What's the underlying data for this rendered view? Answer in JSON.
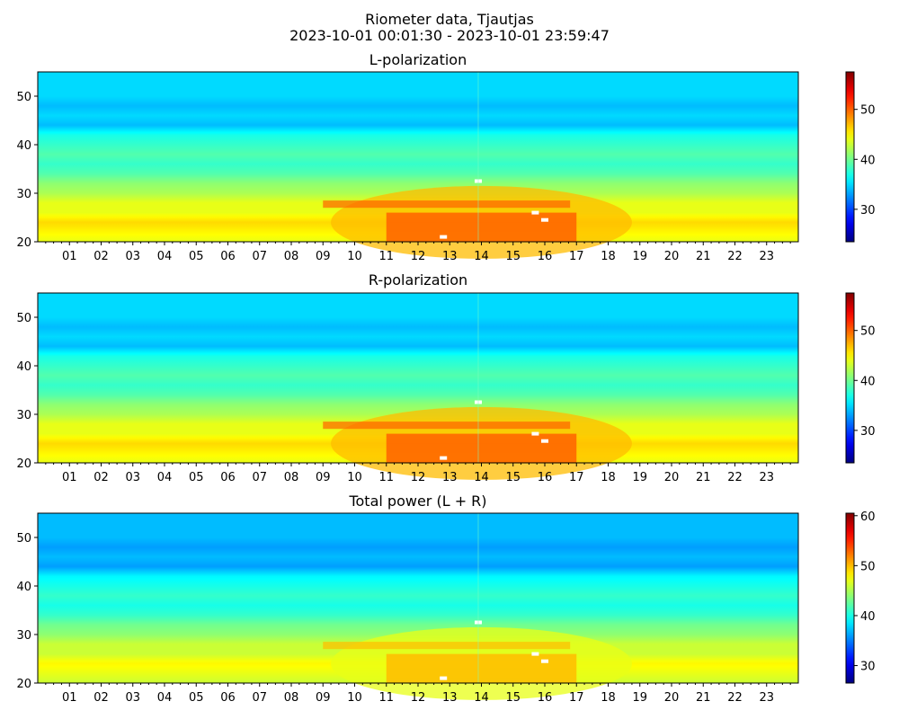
{
  "figure": {
    "title_line1": "Riometer data, Tjautjas",
    "title_line2": "2023-10-01 00:01:30 - 2023-10-01 23:59:47"
  },
  "colormap": "jet",
  "colors": {
    "white_saturation": "#ffffff",
    "axis": "#000000"
  },
  "chart_data": [
    {
      "type": "heatmap",
      "title": "L-polarization",
      "xlabel": "",
      "ylabel": "",
      "x_ticks": [
        "01",
        "02",
        "03",
        "04",
        "05",
        "06",
        "07",
        "08",
        "09",
        "10",
        "11",
        "12",
        "13",
        "14",
        "15",
        "16",
        "17",
        "18",
        "19",
        "20",
        "21",
        "22",
        "23"
      ],
      "x_range_hours": [
        0,
        24
      ],
      "y_range": [
        20,
        55
      ],
      "y_ticks": [
        "20",
        "30",
        "40",
        "50"
      ],
      "colorbar": {
        "range": [
          23.5,
          57.5
        ],
        "ticks": [
          "30",
          "40",
          "50"
        ]
      },
      "profile_by_y": [
        [
          20,
          44
        ],
        [
          22,
          45
        ],
        [
          24,
          46
        ],
        [
          26,
          44
        ],
        [
          28,
          44
        ],
        [
          30,
          42
        ],
        [
          32,
          41
        ],
        [
          34,
          39
        ],
        [
          36,
          38
        ],
        [
          38,
          39
        ],
        [
          40,
          38
        ],
        [
          42,
          37
        ],
        [
          44,
          34
        ],
        [
          46,
          35
        ],
        [
          48,
          34
        ],
        [
          50,
          35
        ],
        [
          52,
          35
        ],
        [
          55,
          35
        ]
      ]
    },
    {
      "type": "heatmap",
      "title": "R-polarization",
      "xlabel": "",
      "ylabel": "",
      "x_ticks": [
        "01",
        "02",
        "03",
        "04",
        "05",
        "06",
        "07",
        "08",
        "09",
        "10",
        "11",
        "12",
        "13",
        "14",
        "15",
        "16",
        "17",
        "18",
        "19",
        "20",
        "21",
        "22",
        "23"
      ],
      "x_range_hours": [
        0,
        24
      ],
      "y_range": [
        20,
        55
      ],
      "y_ticks": [
        "20",
        "30",
        "40",
        "50"
      ],
      "colorbar": {
        "range": [
          23.5,
          57.5
        ],
        "ticks": [
          "30",
          "40",
          "50"
        ]
      },
      "profile_by_y": [
        [
          20,
          44
        ],
        [
          22,
          45
        ],
        [
          24,
          46
        ],
        [
          26,
          44
        ],
        [
          28,
          44
        ],
        [
          30,
          42
        ],
        [
          32,
          41
        ],
        [
          34,
          39
        ],
        [
          36,
          38
        ],
        [
          38,
          39
        ],
        [
          40,
          38
        ],
        [
          42,
          37
        ],
        [
          44,
          34
        ],
        [
          46,
          35
        ],
        [
          48,
          34
        ],
        [
          50,
          35
        ],
        [
          52,
          35
        ],
        [
          55,
          35
        ]
      ]
    },
    {
      "type": "heatmap",
      "title": "Total power (L + R)",
      "xlabel": "",
      "ylabel": "",
      "x_ticks": [
        "01",
        "02",
        "03",
        "04",
        "05",
        "06",
        "07",
        "08",
        "09",
        "10",
        "11",
        "12",
        "13",
        "14",
        "15",
        "16",
        "17",
        "18",
        "19",
        "20",
        "21",
        "22",
        "23"
      ],
      "x_range_hours": [
        0,
        24
      ],
      "y_range": [
        20,
        55
      ],
      "y_ticks": [
        "20",
        "30",
        "40",
        "50"
      ],
      "colorbar": {
        "range": [
          26.5,
          60.5
        ],
        "ticks": [
          "30",
          "40",
          "50",
          "60"
        ]
      },
      "profile_by_y": [
        [
          20,
          46
        ],
        [
          22,
          47
        ],
        [
          24,
          48
        ],
        [
          26,
          46
        ],
        [
          28,
          46
        ],
        [
          30,
          44
        ],
        [
          32,
          43
        ],
        [
          34,
          41
        ],
        [
          36,
          40
        ],
        [
          38,
          41
        ],
        [
          40,
          40
        ],
        [
          42,
          39
        ],
        [
          44,
          36
        ],
        [
          46,
          37
        ],
        [
          48,
          36
        ],
        [
          50,
          37
        ],
        [
          52,
          37
        ],
        [
          55,
          37
        ]
      ]
    }
  ]
}
